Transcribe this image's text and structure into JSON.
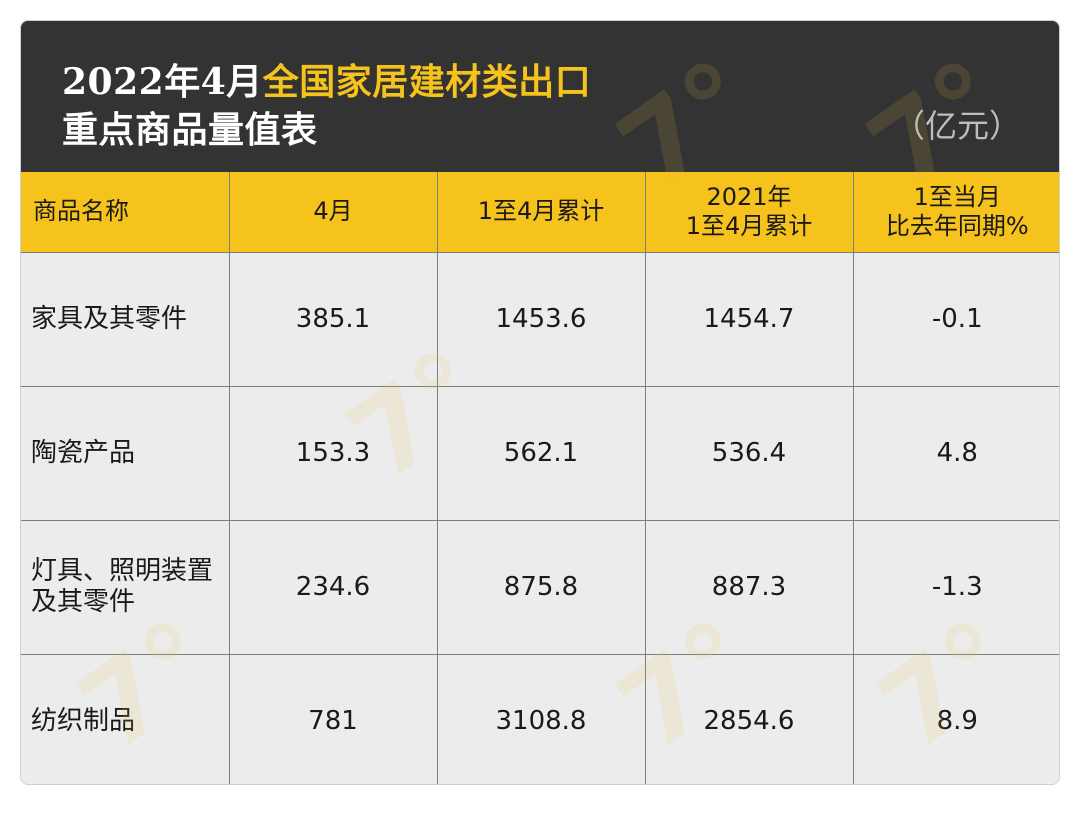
{
  "title": {
    "line1_prefix": "2022年4月",
    "line1_highlight": "全国家居建材类出口",
    "line2": "重点商品量值表",
    "unit": "（亿元）"
  },
  "colors": {
    "header_bg": "#333333",
    "highlight": "#f6c21c",
    "column_header_bg": "#f6c21c",
    "cell_bg": "#ececec"
  },
  "chart_data": {
    "type": "table",
    "columns": [
      "商品名称",
      "4月",
      "1至4月累计",
      "2021年\n1至4月累计",
      "1至当月\n比去年同期%"
    ],
    "rows": [
      {
        "name": "家具及其零件",
        "values": [
          "385.1",
          "1453.6",
          "1454.7",
          "-0.1"
        ]
      },
      {
        "name": "陶瓷产品",
        "values": [
          "153.3",
          "562.1",
          "536.4",
          "4.8"
        ]
      },
      {
        "name": "灯具、照明装置\n及其零件",
        "values": [
          "234.6",
          "875.8",
          "887.3",
          "-1.3"
        ]
      },
      {
        "name": "纺织制品",
        "values": [
          "781",
          "3108.8",
          "2854.6",
          "8.9"
        ]
      }
    ]
  }
}
